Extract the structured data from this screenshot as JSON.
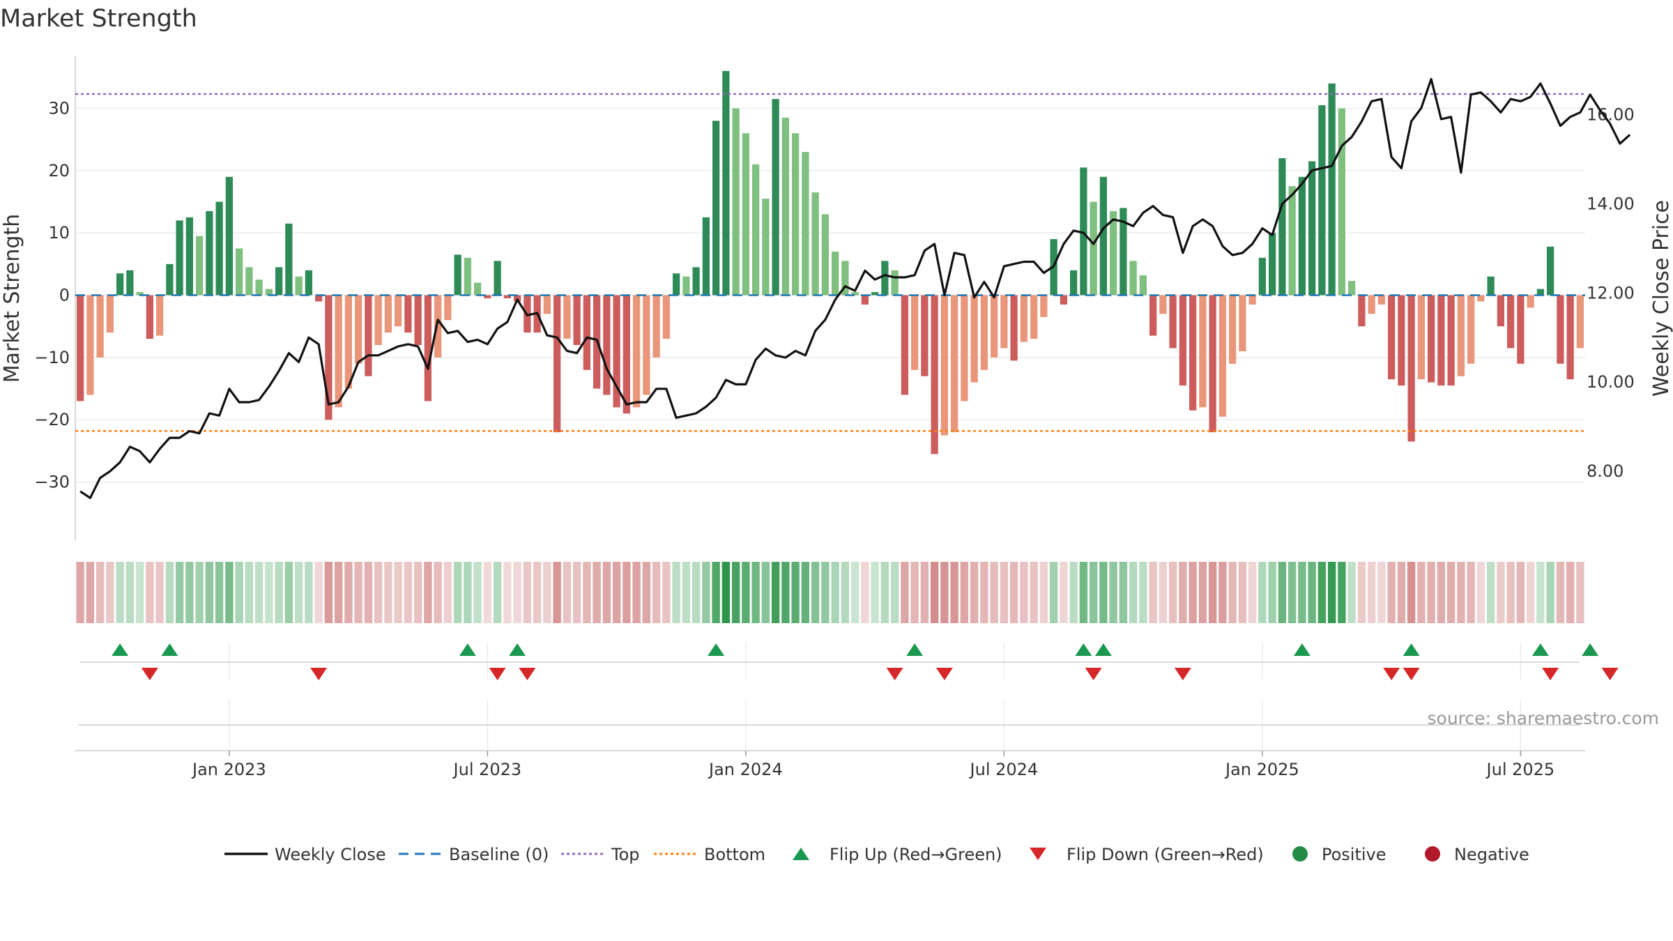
{
  "chart_data": {
    "type": "bar",
    "title": "Market Strength",
    "ylabel": "Market Strength",
    "y2label": "Weekly Close Price",
    "ylim": [
      -39,
      39
    ],
    "y2lim": [
      6.5,
      17.4
    ],
    "yticks": [
      -30,
      -20,
      -10,
      0,
      10,
      20,
      30
    ],
    "y2ticks": [
      "8.00",
      "10.00",
      "12.00",
      "14.00",
      "16.00"
    ],
    "y2tick_values": [
      8,
      10,
      12,
      14,
      16
    ],
    "top_line": 32.3,
    "bottom_line": -21.8,
    "x_ticks": [
      "Jan 2023",
      "Jul 2023",
      "Jan 2024",
      "Jul 2024",
      "Jan 2025",
      "Jul 2025"
    ],
    "x_tick_weeks": [
      15,
      41,
      67,
      93,
      119,
      145
    ],
    "strength": [
      -17,
      -16,
      -10,
      -6,
      3.5,
      4,
      0.5,
      -7,
      -6.5,
      5,
      12,
      12.5,
      9.5,
      13.5,
      15,
      19,
      7.5,
      4.5,
      2.5,
      1,
      4.5,
      11.5,
      3,
      4,
      -1,
      -20,
      -18,
      -15,
      -11,
      -13,
      -8,
      -6,
      -5,
      -6,
      -8,
      -17,
      -10,
      -4,
      6.5,
      6,
      2,
      -0.5,
      5.5,
      -0.5,
      -1,
      -6,
      -6,
      -3,
      -22,
      -7,
      -8,
      -12,
      -15,
      -16,
      -18,
      -19,
      -18,
      -16,
      -10,
      -7,
      3.5,
      3,
      4.5,
      12.5,
      28,
      36,
      30,
      26,
      21,
      15.5,
      31.5,
      28.5,
      26,
      23,
      16.5,
      13,
      7,
      5.5,
      0.5,
      -1.5,
      0.5,
      5.5,
      4,
      -16,
      -12,
      -13,
      -25.5,
      -22.5,
      -22,
      -17,
      -14,
      -12,
      -10,
      -8.5,
      -10.5,
      -7.5,
      -7,
      -3.5,
      9,
      -1.5,
      4,
      20.5,
      15,
      19,
      13.5,
      14,
      5.5,
      3.2,
      -6.5,
      -3,
      -8.5,
      -14.5,
      -18.5,
      -18,
      -22,
      -19.5,
      -11,
      -9,
      -1.5,
      6,
      10,
      22,
      17.5,
      19,
      21.5,
      30.5,
      34,
      30,
      2.3,
      -5,
      -3,
      -1.5,
      -13.5,
      -14.5,
      -23.5,
      -13.5,
      -14,
      -14.5,
      -14.5,
      -13,
      -11,
      -1,
      3,
      -5,
      -8.5,
      -11,
      -2,
      1,
      7.8,
      -11,
      -13.5,
      -8.5
    ],
    "weekly_close": [
      7.55,
      7.4,
      7.85,
      8.0,
      8.2,
      8.55,
      8.45,
      8.2,
      8.5,
      8.75,
      8.75,
      8.9,
      8.85,
      9.3,
      9.25,
      9.85,
      9.55,
      9.55,
      9.6,
      9.9,
      10.25,
      10.65,
      10.45,
      11.0,
      10.85,
      9.5,
      9.55,
      9.9,
      10.45,
      10.6,
      10.6,
      10.7,
      10.8,
      10.85,
      10.8,
      10.3,
      11.4,
      11.1,
      11.15,
      10.9,
      10.95,
      10.85,
      11.2,
      11.35,
      11.85,
      11.5,
      11.55,
      11.05,
      11.0,
      10.7,
      10.65,
      11.0,
      10.95,
      10.3,
      9.9,
      9.5,
      9.55,
      9.55,
      9.85,
      9.85,
      9.2,
      9.25,
      9.3,
      9.45,
      9.65,
      10.05,
      9.95,
      9.95,
      10.5,
      10.75,
      10.6,
      10.55,
      10.7,
      10.6,
      11.15,
      11.4,
      11.85,
      12.15,
      12.05,
      12.5,
      12.3,
      12.4,
      12.35,
      12.35,
      12.4,
      12.95,
      13.1,
      11.95,
      12.9,
      12.85,
      11.9,
      12.25,
      11.9,
      12.6,
      12.65,
      12.7,
      12.7,
      12.45,
      12.6,
      13.1,
      13.4,
      13.35,
      13.1,
      13.45,
      13.65,
      13.6,
      13.5,
      13.8,
      13.95,
      13.75,
      13.7,
      12.9,
      13.5,
      13.65,
      13.5,
      13.05,
      12.85,
      12.9,
      13.1,
      13.45,
      13.3,
      14.0,
      14.2,
      14.45,
      14.75,
      14.8,
      14.85,
      15.3,
      15.5,
      15.85,
      16.3,
      16.35,
      15.05,
      14.8,
      15.85,
      16.15,
      16.8,
      15.9,
      15.95,
      14.7,
      16.45,
      16.5,
      16.3,
      16.05,
      16.35,
      16.3,
      16.4,
      16.7,
      16.25,
      15.75,
      15.95,
      16.05,
      16.45,
      16.1,
      15.8,
      15.35,
      15.55
    ],
    "flip_up_weeks": [
      4,
      9,
      39,
      44,
      64,
      84,
      101,
      103,
      123,
      134,
      147,
      152
    ],
    "flip_down_weeks": [
      7,
      24,
      42,
      45,
      82,
      87,
      102,
      111,
      132,
      134,
      148,
      154
    ],
    "legend": [
      {
        "label": "Weekly Close",
        "kind": "line",
        "color": "#111111"
      },
      {
        "label": "Baseline (0)",
        "kind": "dash",
        "color": "#1f77b4"
      },
      {
        "label": "Top",
        "kind": "dot",
        "color": "#9467bd"
      },
      {
        "label": "Bottom",
        "kind": "dot",
        "color": "#ff7f0e"
      },
      {
        "label": "Flip Up (Red→Green)",
        "kind": "tri-up",
        "color": "#1a9850"
      },
      {
        "label": "Flip Down (Green→Red)",
        "kind": "tri-down",
        "color": "#d62728"
      },
      {
        "label": "Positive",
        "kind": "circle",
        "color": "#238b45"
      },
      {
        "label": "Negative",
        "kind": "circle",
        "color": "#b2182b"
      }
    ],
    "legend_position": "bottom",
    "grid": true
  },
  "source": "source: sharemaestro.com",
  "colors": {
    "pos_strong": "#2e8b57",
    "pos_weak": "#7fbf7f",
    "neg_strong": "#cd5c5c",
    "neg_weak": "#e9967a",
    "price_line": "#111111"
  }
}
